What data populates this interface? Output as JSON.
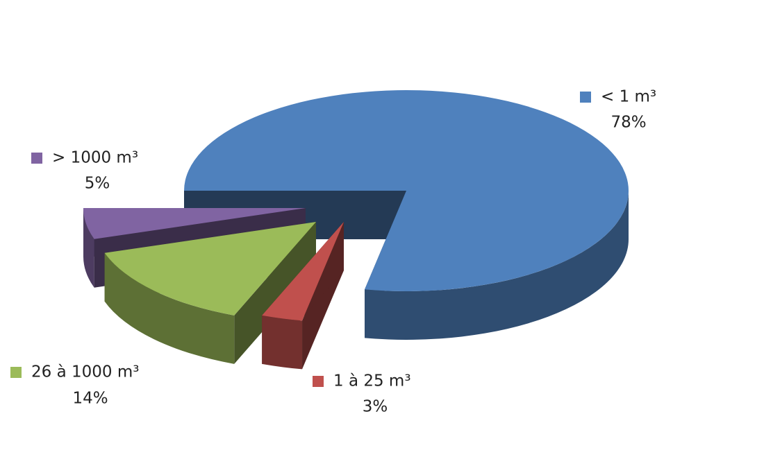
{
  "chart_data": {
    "type": "pie",
    "categories": [
      "< 1 m³",
      "1 à 25 m³",
      "26 à 1000 m³",
      "> 1000 m³"
    ],
    "values": [
      78,
      3,
      14,
      5
    ],
    "value_labels": [
      "78%",
      "3%",
      "14%",
      "5%"
    ],
    "colors": [
      "#4f81bd",
      "#c0504d",
      "#9bbb59",
      "#8064a2"
    ]
  }
}
